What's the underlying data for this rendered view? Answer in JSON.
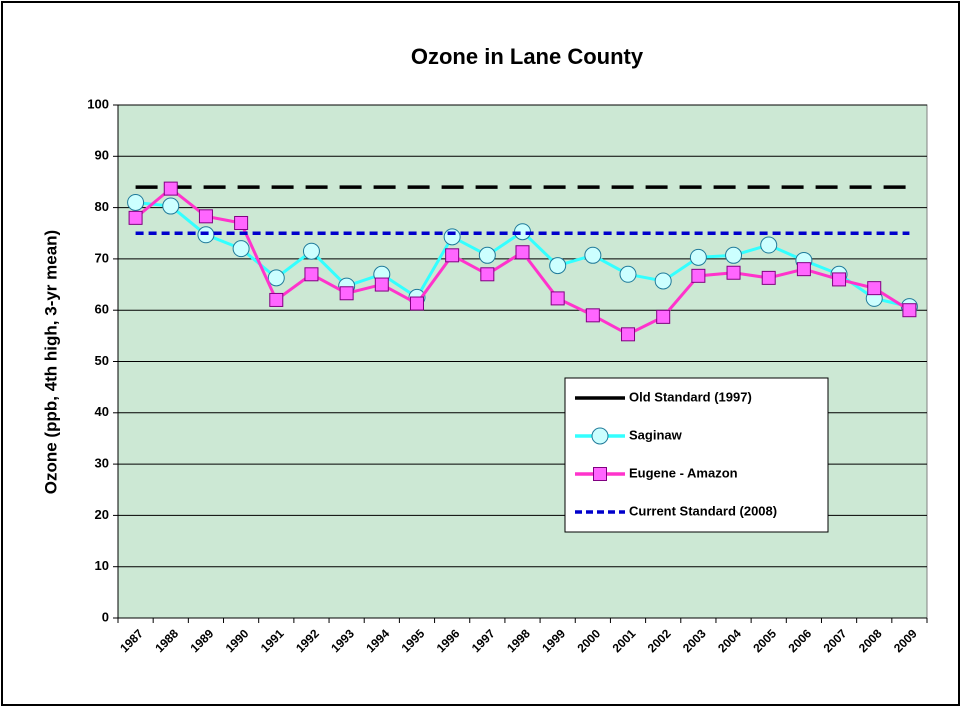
{
  "chart_data": {
    "type": "line",
    "title": "Ozone in Lane County",
    "y_label": "Ozone (ppb, 4th high, 3-yr mean)",
    "categories": [
      "1987",
      "1988",
      "1989",
      "1990",
      "1991",
      "1992",
      "1993",
      "1994",
      "1995",
      "1996",
      "1997",
      "1998",
      "1999",
      "2000",
      "2001",
      "2002",
      "2003",
      "2004",
      "2005",
      "2006",
      "2007",
      "2008",
      "2009"
    ],
    "series": [
      {
        "name": "Old Standard (1997)",
        "color": "#000000",
        "line_style": "dash",
        "marker": null,
        "values": [
          84,
          84,
          84,
          84,
          84,
          84,
          84,
          84,
          84,
          84,
          84,
          84,
          84,
          84,
          84,
          84,
          84,
          84,
          84,
          84,
          84,
          84,
          84
        ]
      },
      {
        "name": "Saginaw",
        "color": "#33ffff",
        "line_style": "solid",
        "marker": "circle",
        "values": [
          81,
          80.3,
          74.7,
          72,
          66.3,
          71.5,
          64.7,
          67,
          62.5,
          74.3,
          70.7,
          75.3,
          68.7,
          70.7,
          67,
          65.7,
          70.3,
          70.7,
          72.7,
          69.7,
          67,
          62.3,
          60.7
        ]
      },
      {
        "name": "Eugene - Amazon",
        "color": "#ff33cc",
        "line_style": "solid",
        "marker": "square",
        "values": [
          78,
          83.7,
          78.3,
          77,
          62,
          67,
          63.3,
          65,
          61.3,
          70.7,
          67,
          71.3,
          62.3,
          59,
          55.3,
          58.7,
          66.7,
          67.3,
          66.3,
          68,
          66,
          64.3,
          60
        ]
      },
      {
        "name": "Current Standard (2008)",
        "color": "#0000cc",
        "line_style": "dot",
        "marker": null,
        "values": [
          75,
          75,
          75,
          75,
          75,
          75,
          75,
          75,
          75,
          75,
          75,
          75,
          75,
          75,
          75,
          75,
          75,
          75,
          75,
          75,
          75,
          75,
          75
        ]
      }
    ],
    "ylim": [
      0,
      100
    ],
    "yticks": [
      0,
      10,
      20,
      30,
      40,
      50,
      60,
      70,
      80,
      90,
      100
    ],
    "grid": true,
    "plot_background": "#cce8d4",
    "legend": "lower-right"
  }
}
